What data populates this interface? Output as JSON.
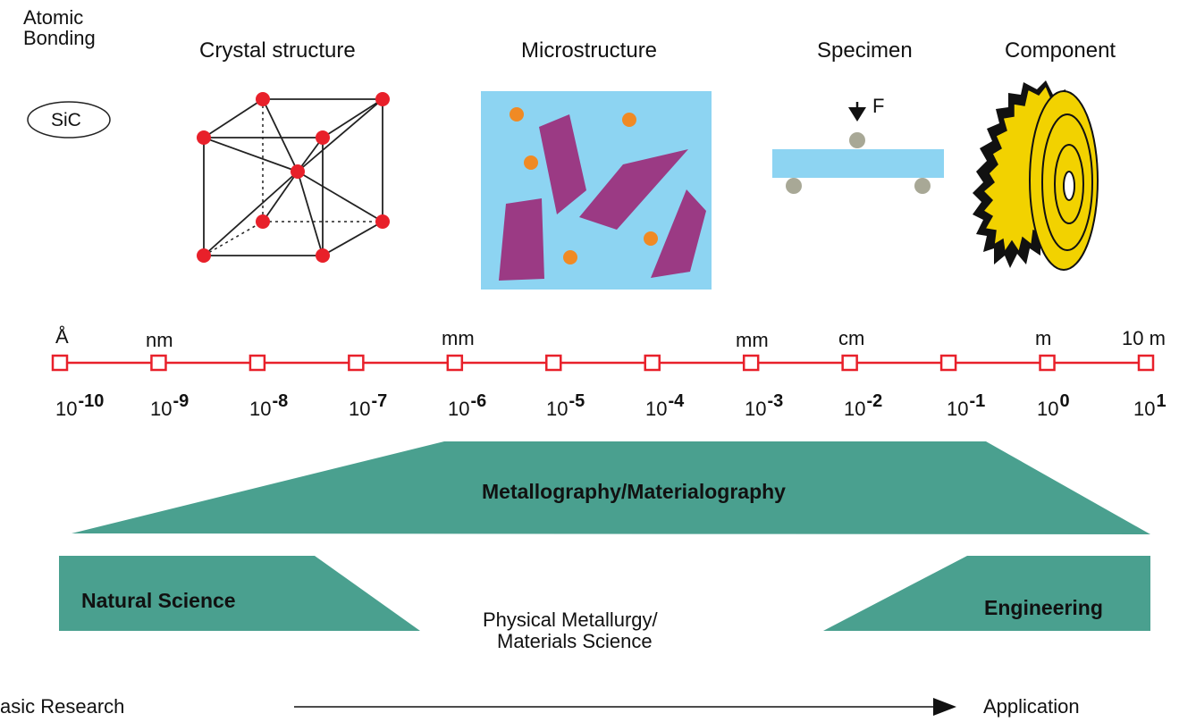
{
  "stages": {
    "atomic": "Atomic\nBonding",
    "crystal": "Crystal structure",
    "micro": "Microstructure",
    "specimen": "Specimen",
    "component": "Component"
  },
  "sic_label": "SiC",
  "force_label": "F",
  "scale_top_labels": [
    "Å",
    "nm",
    "mm",
    "mm",
    "cm",
    "m",
    "10 m"
  ],
  "scale_powers": [
    {
      "base": "10",
      "exp": "-10"
    },
    {
      "base": "10",
      "exp": "-9"
    },
    {
      "base": "10",
      "exp": "-8"
    },
    {
      "base": "10",
      "exp": "-7"
    },
    {
      "base": "10",
      "exp": "-6"
    },
    {
      "base": "10",
      "exp": "-5"
    },
    {
      "base": "10",
      "exp": "-4"
    },
    {
      "base": "10",
      "exp": "-3"
    },
    {
      "base": "10",
      "exp": "-2"
    },
    {
      "base": "10",
      "exp": "-1"
    },
    {
      "base": "10",
      "exp": "0"
    },
    {
      "base": "10",
      "exp": "1"
    }
  ],
  "bands": {
    "metallography": "Metallography/Materialography",
    "natural": "Natural Science",
    "engineering": "Engineering",
    "physical_1": "Physical Metallurgy/",
    "physical_2": "Materials Science"
  },
  "axis": {
    "left": "asic Research",
    "right": "Application"
  },
  "colors": {
    "red": "#e8202a",
    "teal": "#4aa08f",
    "sky": "#8dd4f2",
    "purple": "#9b3a84",
    "orange": "#f08a24",
    "gray": "#a8a896",
    "gold": "#f2d200"
  }
}
